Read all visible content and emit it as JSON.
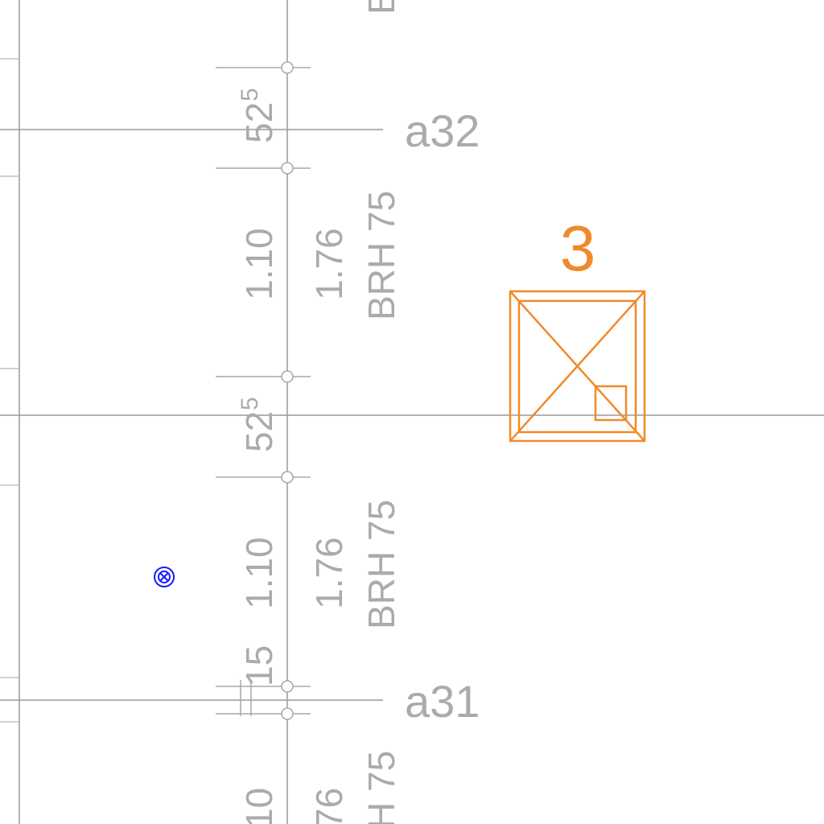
{
  "grid_labels": {
    "upper": "a32",
    "lower": "a31"
  },
  "dimensions": {
    "top_partial": "B",
    "seg_upper_main": "52",
    "seg_upper_sup": "5",
    "opening_upper_width": "1.10",
    "opening_upper_height": "1.76",
    "opening_upper_sill": "BRH 75",
    "seg_mid_main": "52",
    "seg_mid_sup": "5",
    "opening_lower_width": "1.10",
    "opening_lower_height": "1.76",
    "opening_lower_sill": "BRH 75",
    "seg_small": "15",
    "bottom_width_partial": "10",
    "bottom_height_partial": "76",
    "bottom_sill_partial": "H 75"
  },
  "column": {
    "number": "3"
  },
  "colors": {
    "lines": "#9a9a9a",
    "text": "#ababab",
    "column": "#f08a2a",
    "symbol": "#1a1aff"
  },
  "symbols": {
    "marker": "target-marker-icon"
  }
}
